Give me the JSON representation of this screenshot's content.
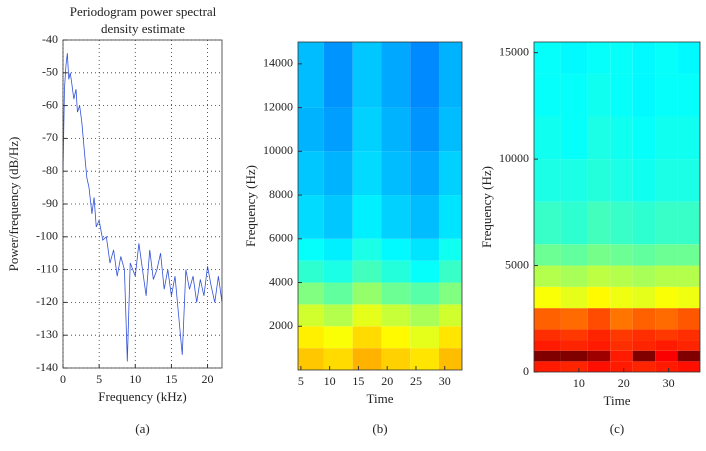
{
  "chart_data": [
    {
      "type": "line",
      "title": "Periodogram power spectral density estimate",
      "xlabel": "Frequency (kHz)",
      "ylabel": "Power/frequency (dB/Hz)",
      "panel_label": "(a)",
      "xlim": [
        0,
        22
      ],
      "xticks": [
        0,
        5,
        10,
        15,
        20
      ],
      "ylim": [
        -140,
        -40
      ],
      "yticks": [
        -140,
        -130,
        -120,
        -110,
        -100,
        -90,
        -80,
        -70,
        -60,
        -50,
        -40
      ],
      "grid": true,
      "color": "#3352d6",
      "x": [
        0,
        0.2,
        0.4,
        0.6,
        0.8,
        1,
        1.2,
        1.5,
        1.8,
        2,
        2.3,
        2.6,
        3,
        3.3,
        3.6,
        4,
        4.3,
        4.6,
        5,
        5.5,
        6,
        6.5,
        7,
        7.5,
        8,
        8.5,
        8.9,
        9.3,
        10,
        10.5,
        11,
        11.5,
        12,
        12.5,
        13,
        13.5,
        14,
        14.5,
        15,
        15.5,
        16,
        16.5,
        17,
        17.5,
        18,
        18.5,
        19,
        19.5,
        20,
        20.5,
        21,
        21.5,
        22
      ],
      "values": [
        -80,
        -55,
        -48,
        -44,
        -52,
        -50,
        -53,
        -58,
        -55,
        -62,
        -60,
        -65,
        -75,
        -82,
        -85,
        -93,
        -88,
        -97,
        -95,
        -101,
        -100,
        -108,
        -104,
        -112,
        -106,
        -110,
        -138,
        -108,
        -112,
        -102,
        -110,
        -118,
        -104,
        -113,
        -110,
        -105,
        -116,
        -110,
        -118,
        -112,
        -124,
        -136,
        -110,
        -116,
        -112,
        -120,
        -113,
        -118,
        -109,
        -115,
        -120,
        -112,
        -120
      ]
    },
    {
      "type": "heatmap",
      "xlabel": "Time",
      "ylabel": "Frequency (Hz)",
      "panel_label": "(b)",
      "colormap": "jet",
      "xlim": [
        4.5,
        33
      ],
      "xticks": [
        5,
        10,
        15,
        20,
        25,
        30
      ],
      "ylim": [
        0,
        15000
      ],
      "yticks": [
        2000,
        4000,
        6000,
        8000,
        10000,
        12000,
        14000
      ],
      "grid": false,
      "xbins": [
        4.5,
        9,
        14,
        19,
        24,
        29,
        33
      ],
      "ybins": [
        0,
        1000,
        2000,
        3000,
        4000,
        5000,
        6000,
        8000,
        10000,
        12000,
        15000
      ],
      "z": [
        [
          0.68,
          0.66,
          0.7,
          0.67,
          0.65,
          0.69
        ],
        [
          0.64,
          0.62,
          0.66,
          0.63,
          0.6,
          0.65
        ],
        [
          0.58,
          0.55,
          0.6,
          0.57,
          0.54,
          0.58
        ],
        [
          0.5,
          0.47,
          0.52,
          0.48,
          0.46,
          0.5
        ],
        [
          0.42,
          0.4,
          0.44,
          0.41,
          0.38,
          0.43
        ],
        [
          0.38,
          0.36,
          0.4,
          0.37,
          0.35,
          0.39
        ],
        [
          0.34,
          0.32,
          0.36,
          0.33,
          0.31,
          0.35
        ],
        [
          0.32,
          0.3,
          0.34,
          0.31,
          0.29,
          0.33
        ],
        [
          0.3,
          0.28,
          0.33,
          0.3,
          0.27,
          0.31
        ],
        [
          0.31,
          0.27,
          0.32,
          0.29,
          0.26,
          0.3
        ]
      ]
    },
    {
      "type": "heatmap",
      "xlabel": "Time",
      "ylabel": "Frequency (Hz)",
      "panel_label": "(c)",
      "colormap": "jet",
      "xlim": [
        0,
        37
      ],
      "xticks": [
        10,
        20,
        30
      ],
      "ylim": [
        0,
        15500
      ],
      "yticks": [
        0,
        5000,
        10000,
        15000
      ],
      "grid": false,
      "xbins": [
        0,
        6,
        12,
        17,
        22,
        27,
        32,
        37
      ],
      "ybins": [
        0,
        500,
        1000,
        1500,
        2000,
        3000,
        4000,
        5000,
        6000,
        8000,
        10000,
        12000,
        14000,
        15500
      ],
      "z": [
        [
          0.85,
          0.84,
          0.86,
          0.85,
          0.84,
          0.85,
          0.86
        ],
        [
          1.0,
          1.0,
          0.97,
          0.85,
          1.0,
          0.88,
          1.0
        ],
        [
          0.85,
          0.84,
          0.85,
          0.83,
          0.84,
          0.85,
          0.84
        ],
        [
          0.83,
          0.82,
          0.84,
          0.82,
          0.83,
          0.82,
          0.83
        ],
        [
          0.78,
          0.77,
          0.8,
          0.76,
          0.78,
          0.77,
          0.79
        ],
        [
          0.62,
          0.6,
          0.63,
          0.61,
          0.6,
          0.62,
          0.61
        ],
        [
          0.55,
          0.54,
          0.56,
          0.55,
          0.54,
          0.55,
          0.55
        ],
        [
          0.48,
          0.47,
          0.49,
          0.48,
          0.47,
          0.48,
          0.48
        ],
        [
          0.43,
          0.42,
          0.44,
          0.43,
          0.42,
          0.43,
          0.43
        ],
        [
          0.4,
          0.4,
          0.41,
          0.4,
          0.39,
          0.4,
          0.4
        ],
        [
          0.39,
          0.38,
          0.4,
          0.39,
          0.38,
          0.39,
          0.39
        ],
        [
          0.38,
          0.38,
          0.39,
          0.38,
          0.37,
          0.38,
          0.38
        ],
        [
          0.38,
          0.37,
          0.38,
          0.38,
          0.37,
          0.38,
          0.37
        ]
      ]
    }
  ]
}
